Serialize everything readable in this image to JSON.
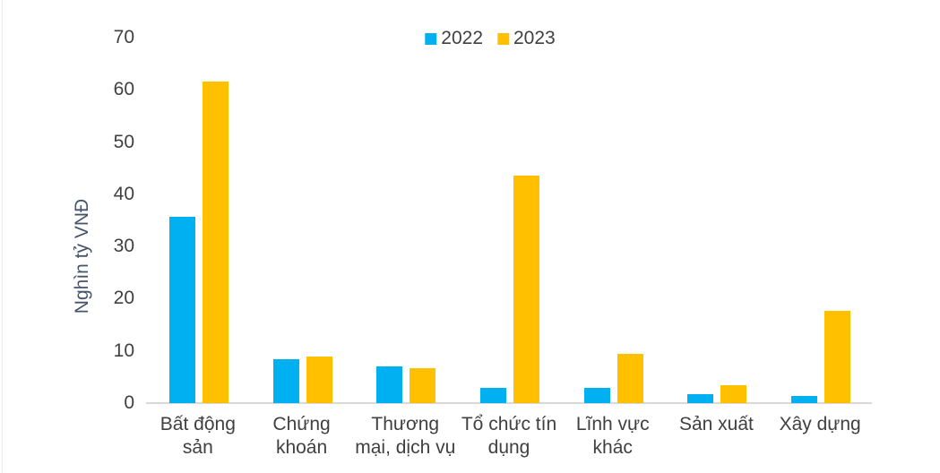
{
  "chart_data": {
    "type": "bar",
    "title": "",
    "xlabel": "",
    "ylabel": "Nghìn tỷ VNĐ",
    "ylim": [
      0,
      70
    ],
    "yticks": [
      0,
      10,
      20,
      30,
      40,
      50,
      60,
      70
    ],
    "grid": false,
    "legend_position": "top-center",
    "categories": [
      "Bất động sản",
      "Chứng khoán",
      "Thương mại, dịch vụ",
      "Tổ chức tín dụng",
      "Lĩnh vực khác",
      "Sản xuất",
      "Xây dựng"
    ],
    "category_label_lines": [
      [
        "Bất động",
        "sản"
      ],
      [
        "Chứng",
        "khoán"
      ],
      [
        "Thương",
        "mại, dịch vụ"
      ],
      [
        "Tổ chức tín",
        "dụng"
      ],
      [
        "Lĩnh vực",
        "khác"
      ],
      [
        "Sản xuất"
      ],
      [
        "Xây dựng"
      ]
    ],
    "series": [
      {
        "name": "2022",
        "color": "#00B0F0",
        "values": [
          35.7,
          8.4,
          7.0,
          3.0,
          3.0,
          1.7,
          1.3
        ]
      },
      {
        "name": "2023",
        "color": "#FFC000",
        "values": [
          61.6,
          9.0,
          6.7,
          43.5,
          9.4,
          3.4,
          17.7
        ]
      }
    ]
  },
  "colors": {
    "series_2022": "#00B0F0",
    "series_2023": "#FFC000",
    "axis_line": "#D9D9D9",
    "tick_text": "#404040",
    "axis_title_text": "#44546A",
    "background": "#FFFFFF"
  }
}
